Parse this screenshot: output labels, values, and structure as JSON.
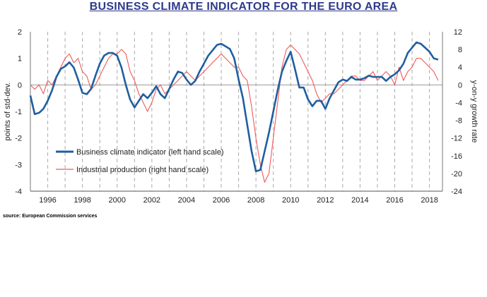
{
  "page": {
    "title": "BUSINESS CLIMATE INDICATOR FOR THE EURO AREA",
    "source": "source: European Commission services"
  },
  "chart_data": {
    "type": "line",
    "title": "BUSINESS CLIMATE INDICATOR FOR THE EURO AREA",
    "ylabel_left": "points of std-dev.",
    "ylabel_right": "y-on-y growth rate",
    "ylim_left": [
      -4,
      2
    ],
    "ylim_right": [
      -24,
      12
    ],
    "yticks_left": [
      2,
      1,
      0,
      -1,
      -2,
      -3,
      -4
    ],
    "yticks_right": [
      12,
      8,
      4,
      0,
      -4,
      -8,
      -12,
      -16,
      -20,
      -24
    ],
    "xlim": [
      1995.0,
      2018.75
    ],
    "xticks": [
      "1996",
      "1998",
      "2000",
      "2002",
      "2004",
      "2006",
      "2008",
      "2010",
      "2012",
      "2014",
      "2016",
      "2018"
    ],
    "xtick_positions": [
      1996,
      1998,
      2000,
      2002,
      2004,
      2006,
      2008,
      2010,
      2012,
      2014,
      2016,
      2018
    ],
    "grid": "vertical dashed yearly lines, horizontal zero line",
    "legend_position": "lower-left inside plot",
    "colors": {
      "bci": "#1f5fa0",
      "ip": "#f05a5a",
      "grid": "#aaaaaa",
      "title": "#2e3a8c"
    },
    "series": [
      {
        "name": "Business climate indicator (left hand scale)",
        "axis": "left",
        "x": [
          1995.0,
          1995.25,
          1995.5,
          1995.75,
          1996.0,
          1996.25,
          1996.5,
          1996.75,
          1997.0,
          1997.25,
          1997.5,
          1997.75,
          1998.0,
          1998.25,
          1998.5,
          1998.75,
          1999.0,
          1999.25,
          1999.5,
          1999.75,
          2000.0,
          2000.25,
          2000.5,
          2000.75,
          2001.0,
          2001.25,
          2001.5,
          2001.75,
          2002.0,
          2002.25,
          2002.5,
          2002.75,
          2003.0,
          2003.25,
          2003.5,
          2003.75,
          2004.0,
          2004.25,
          2004.5,
          2004.75,
          2005.0,
          2005.25,
          2005.5,
          2005.75,
          2006.0,
          2006.25,
          2006.5,
          2006.75,
          2007.0,
          2007.25,
          2007.5,
          2007.75,
          2008.0,
          2008.25,
          2008.5,
          2008.75,
          2009.0,
          2009.25,
          2009.5,
          2009.75,
          2010.0,
          2010.25,
          2010.5,
          2010.75,
          2011.0,
          2011.25,
          2011.5,
          2011.75,
          2012.0,
          2012.25,
          2012.5,
          2012.75,
          2013.0,
          2013.25,
          2013.5,
          2013.75,
          2014.0,
          2014.25,
          2014.5,
          2014.75,
          2015.0,
          2015.25,
          2015.5,
          2015.75,
          2016.0,
          2016.25,
          2016.5,
          2016.75,
          2017.0,
          2017.25,
          2017.5,
          2017.75,
          2018.0,
          2018.25,
          2018.5
        ],
        "values": [
          -0.4,
          -1.1,
          -1.05,
          -0.9,
          -0.6,
          -0.2,
          0.3,
          0.6,
          0.7,
          0.85,
          0.65,
          0.2,
          -0.3,
          -0.35,
          -0.15,
          0.35,
          0.8,
          1.1,
          1.2,
          1.2,
          1.1,
          0.65,
          0.0,
          -0.55,
          -0.85,
          -0.6,
          -0.35,
          -0.5,
          -0.3,
          -0.05,
          -0.35,
          -0.5,
          -0.15,
          0.2,
          0.5,
          0.45,
          0.2,
          0.0,
          0.15,
          0.5,
          0.8,
          1.1,
          1.3,
          1.5,
          1.55,
          1.45,
          1.35,
          1.0,
          0.2,
          -0.5,
          -1.5,
          -2.5,
          -3.25,
          -3.2,
          -2.5,
          -1.8,
          -1.0,
          -0.2,
          0.5,
          0.9,
          1.25,
          0.6,
          -0.1,
          -0.1,
          -0.55,
          -0.8,
          -0.6,
          -0.6,
          -0.9,
          -0.5,
          -0.2,
          0.1,
          0.2,
          0.15,
          0.3,
          0.2,
          0.2,
          0.25,
          0.35,
          0.3,
          0.3,
          0.3,
          0.15,
          0.3,
          0.4,
          0.55,
          0.8,
          1.2,
          1.4,
          1.6,
          1.55,
          1.4,
          1.25,
          1.0,
          0.95
        ]
      },
      {
        "name": "Industrial production (right hand scale)",
        "axis": "right",
        "x": [
          1995.0,
          1995.25,
          1995.5,
          1995.75,
          1996.0,
          1996.25,
          1996.5,
          1996.75,
          1997.0,
          1997.25,
          1997.5,
          1997.75,
          1998.0,
          1998.25,
          1998.5,
          1998.75,
          1999.0,
          1999.25,
          1999.5,
          1999.75,
          2000.0,
          2000.25,
          2000.5,
          2000.75,
          2001.0,
          2001.25,
          2001.5,
          2001.75,
          2002.0,
          2002.25,
          2002.5,
          2002.75,
          2003.0,
          2003.25,
          2003.5,
          2003.75,
          2004.0,
          2004.25,
          2004.5,
          2004.75,
          2005.0,
          2005.25,
          2005.5,
          2005.75,
          2006.0,
          2006.25,
          2006.5,
          2006.75,
          2007.0,
          2007.25,
          2007.5,
          2007.75,
          2008.0,
          2008.25,
          2008.5,
          2008.75,
          2009.0,
          2009.25,
          2009.5,
          2009.75,
          2010.0,
          2010.25,
          2010.5,
          2010.75,
          2011.0,
          2011.25,
          2011.5,
          2011.75,
          2012.0,
          2012.25,
          2012.5,
          2012.75,
          2013.0,
          2013.25,
          2013.5,
          2013.75,
          2014.0,
          2014.25,
          2014.5,
          2014.75,
          2015.0,
          2015.25,
          2015.5,
          2015.75,
          2016.0,
          2016.25,
          2016.5,
          2016.75,
          2017.0,
          2017.25,
          2017.5,
          2017.75,
          2018.0,
          2018.25,
          2018.5
        ],
        "values": [
          0,
          -1,
          0,
          -2,
          1,
          0,
          2,
          4,
          6,
          7,
          5,
          6,
          3,
          2,
          -1,
          0,
          2,
          4,
          6,
          7,
          7,
          8,
          7,
          3,
          1,
          -2,
          -4,
          -6,
          -4,
          -1,
          0,
          -2,
          -1,
          0,
          1,
          2,
          3,
          2,
          1,
          2,
          3,
          4,
          5,
          6,
          7,
          6,
          5,
          4,
          4,
          2,
          1,
          -5,
          -12,
          -18,
          -22,
          -20,
          -12,
          -4,
          4,
          8,
          9,
          8,
          7,
          5,
          3,
          1,
          -2,
          -4,
          -3,
          -2,
          -2,
          -1,
          0,
          1,
          2,
          2,
          1,
          1,
          2,
          3,
          1,
          2,
          3,
          2,
          0,
          4,
          1,
          3,
          4,
          6,
          6,
          5,
          4,
          3,
          1
        ]
      }
    ]
  }
}
